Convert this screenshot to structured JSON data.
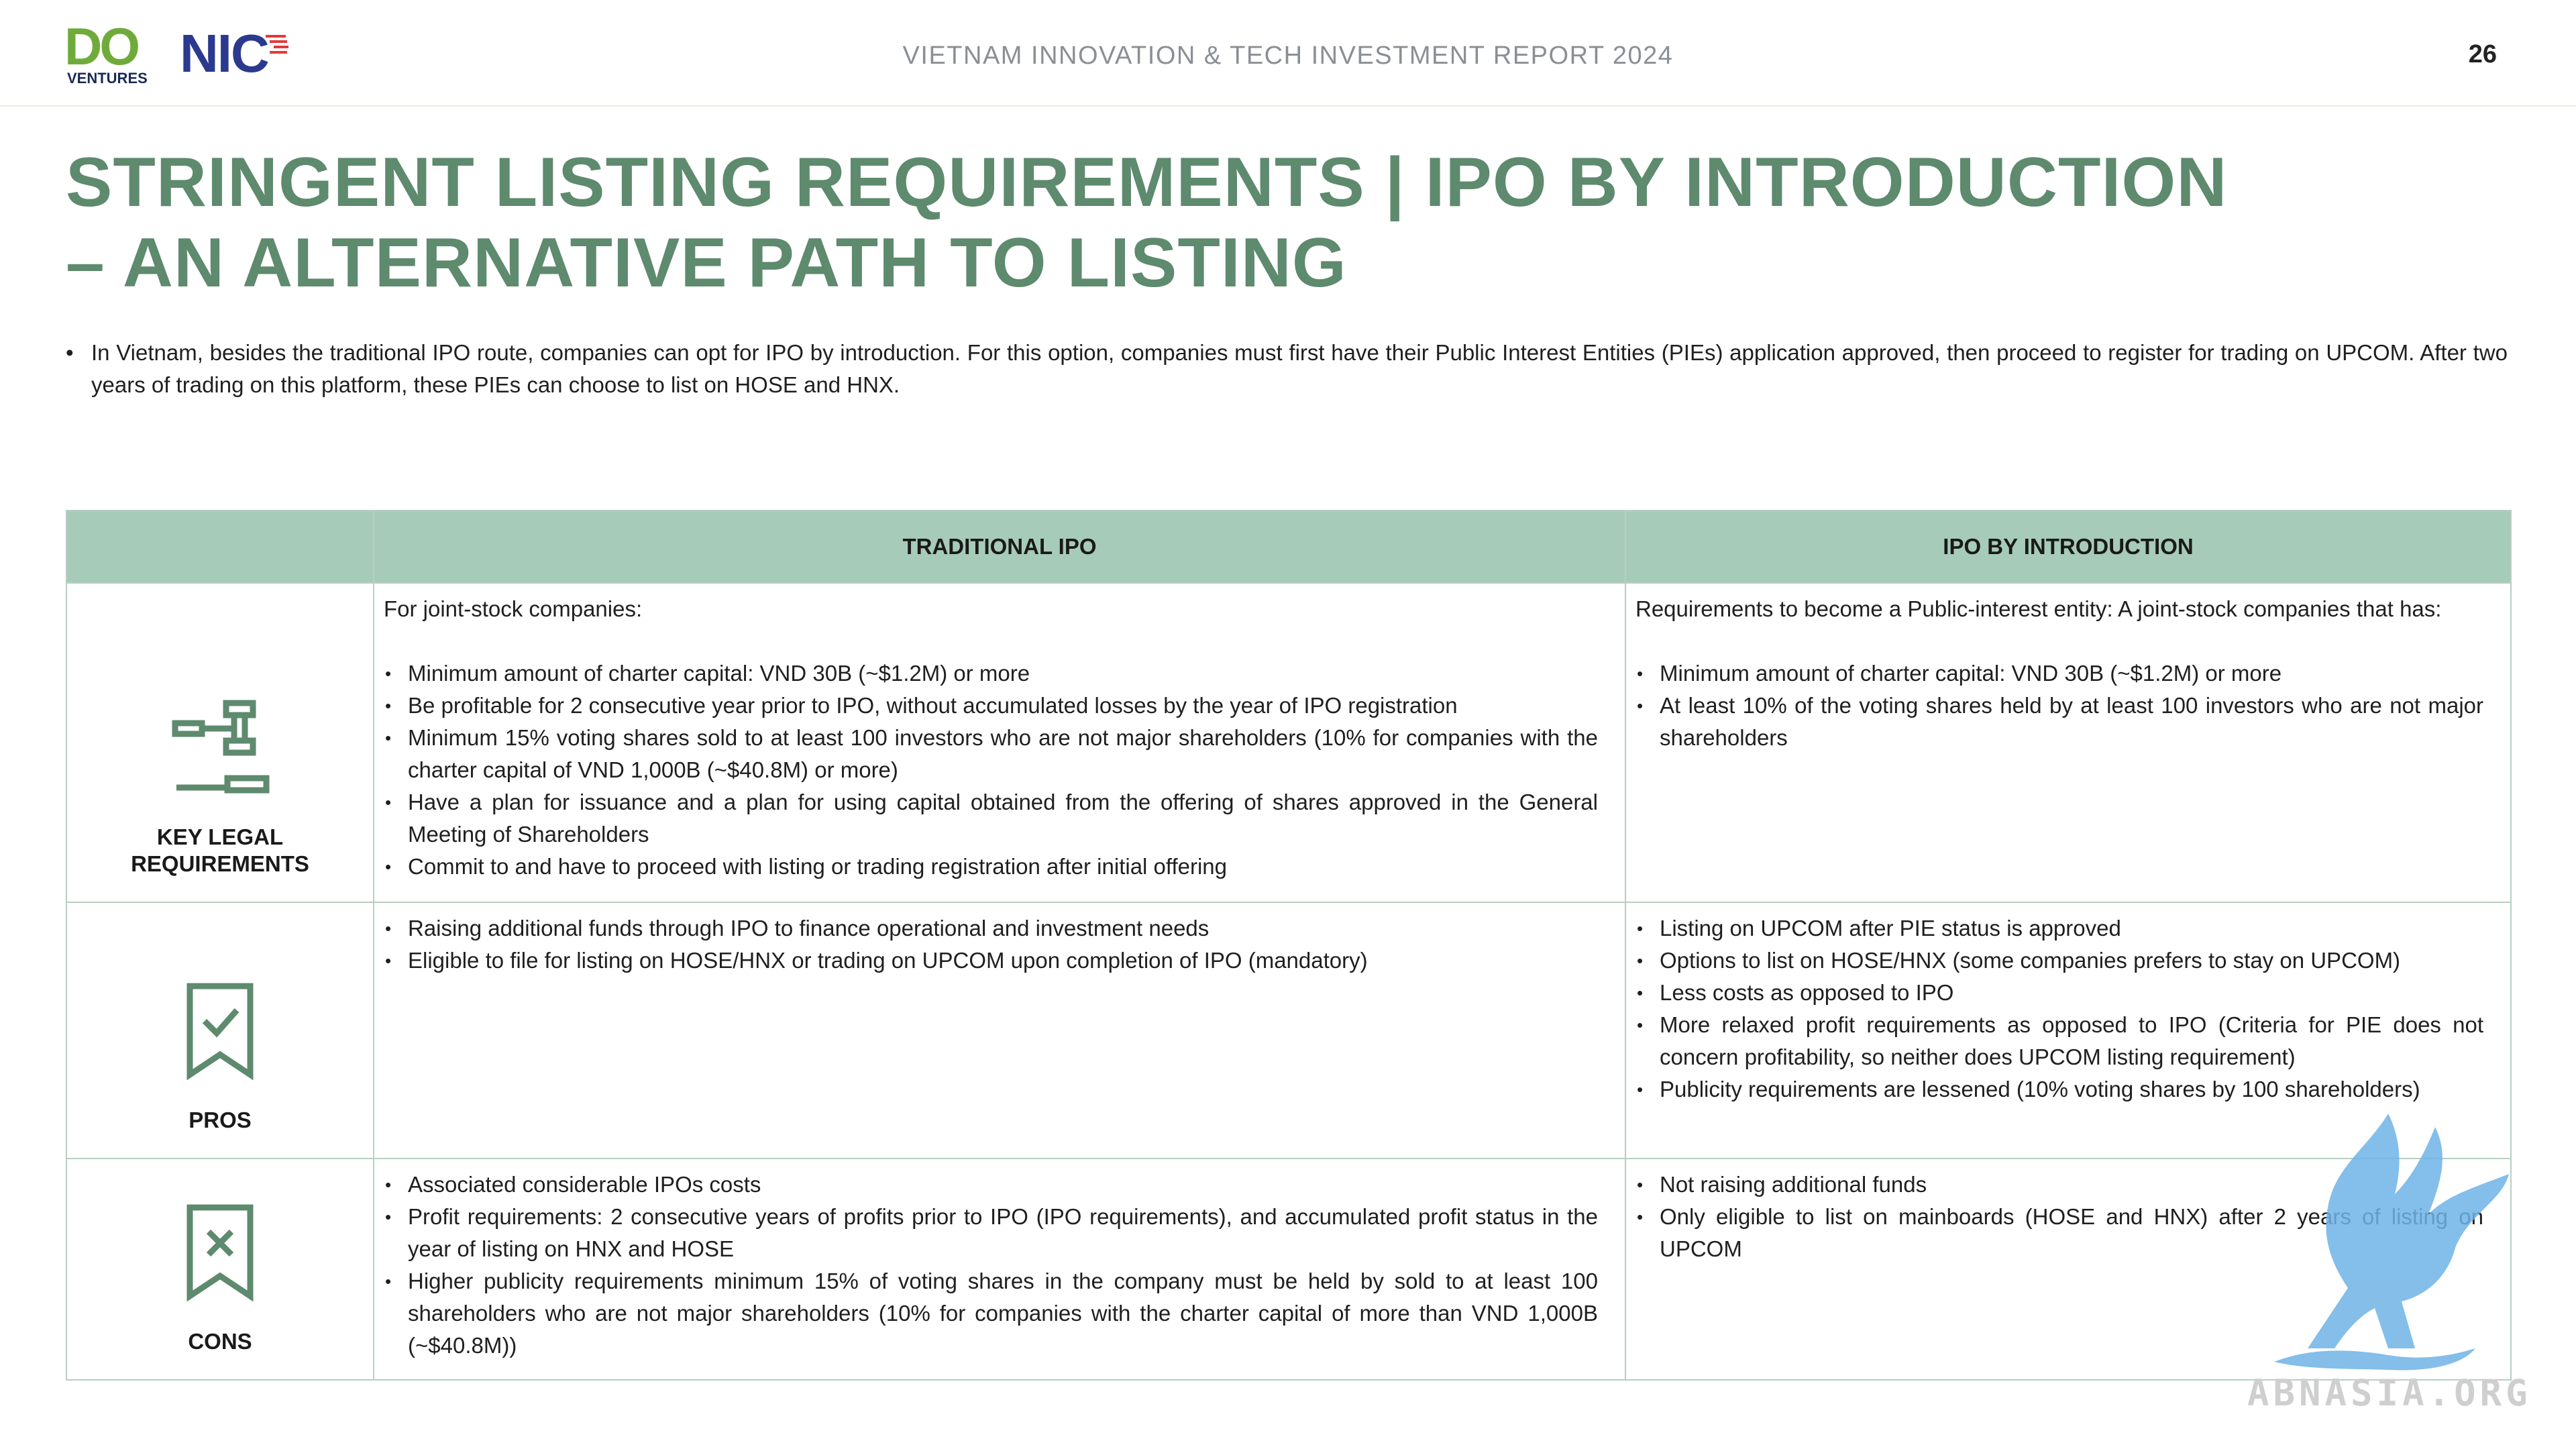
{
  "header": {
    "logo_do": "DO",
    "logo_do_sub": "VENTURES",
    "logo_nic": "NIC",
    "report_title": "VIETNAM INNOVATION & TECH INVESTMENT REPORT 2024",
    "page_number": "26"
  },
  "title": {
    "line1": "STRINGENT LISTING REQUIREMENTS | IPO BY INTRODUCTION",
    "line2": "– AN ALTERNATIVE PATH TO LISTING"
  },
  "intro": {
    "bullet": "•",
    "text": "In Vietnam, besides the traditional IPO route, companies can opt for IPO by introduction. For this option, companies must first have their Public Interest Entities (PIEs) application approved, then proceed to register for trading on UPCOM. After two years of trading on this platform, these PIEs can choose to list on HOSE and HNX."
  },
  "table": {
    "headers": [
      "TRADITIONAL IPO",
      "IPO BY INTRODUCTION"
    ],
    "rows": [
      {
        "label_line1": "KEY LEGAL",
        "label_line2": "REQUIREMENTS",
        "icon": "gavel-icon",
        "traditional": {
          "intro": "For joint-stock companies:",
          "items": [
            "Minimum amount of charter capital: VND 30B (~$1.2M) or more",
            "Be profitable for 2 consecutive year prior to IPO, without accumulated losses by the year of IPO registration",
            "Minimum 15% voting shares sold to at least 100 investors who are not major shareholders (10% for companies with the charter capital of VND 1,000B (~$40.8M) or more)",
            "Have a plan for issuance and a plan for using capital obtained from the offering of shares approved in the General Meeting of Shareholders",
            "Commit to and have to proceed with listing or trading registration after initial offering"
          ]
        },
        "introduction": {
          "intro": "Requirements to become a Public-interest entity: A joint-stock companies that has:",
          "items": [
            "Minimum amount of charter capital: VND 30B (~$1.2M) or more",
            "At least 10% of the voting shares held by at least 100 investors who are not major shareholders"
          ]
        }
      },
      {
        "label_line1": "PROS",
        "icon": "bookmark-check-icon",
        "traditional": {
          "items": [
            "Raising additional funds through IPO to finance operational and investment needs",
            "Eligible to file for listing on HOSE/HNX or trading on UPCOM upon completion of IPO (mandatory)"
          ]
        },
        "introduction": {
          "items": [
            "Listing on UPCOM after PIE status is approved",
            "Options to list on HOSE/HNX (some companies prefers to stay on UPCOM)",
            "Less costs as opposed to IPO",
            "More relaxed profit requirements as opposed to IPO (Criteria for PIE does not concern profitability, so neither does UPCOM listing requirement)",
            "Publicity requirements are lessened (10% voting shares by 100 shareholders)"
          ]
        }
      },
      {
        "label_line1": "CONS",
        "icon": "bookmark-x-icon",
        "traditional": {
          "items": [
            "Associated considerable IPOs costs",
            "Profit requirements: 2 consecutive years of profits prior to IPO (IPO requirements), and accumulated profit status in the year of listing on HNX and HOSE",
            "Higher publicity requirements minimum 15% of voting shares in the company must be held by sold to at least 100 shareholders who are not major shareholders (10% for companies with the charter capital of more than  VND 1,000B (~$40.8M))"
          ]
        },
        "introduction": {
          "items": [
            "Not raising additional funds",
            "Only eligible to list on mainboards (HOSE and HNX) after 2 years of listing on UPCOM"
          ]
        }
      }
    ]
  },
  "watermark": {
    "text": "ABNASIA.ORG",
    "icon": "griffin-icon"
  },
  "colors": {
    "title_green": "#5e8a6e",
    "header_fill": "#a7cbb9",
    "icon_green": "#5e8a6e",
    "watermark_blue": "#6fb3e6"
  }
}
